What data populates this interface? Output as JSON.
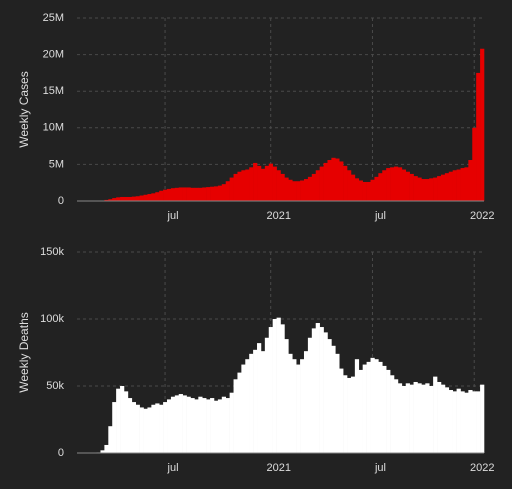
{
  "chart_data": [
    {
      "type": "bar",
      "ylabel": "Weekly Cases",
      "color": "#e60000",
      "categories": [
        null,
        null,
        null,
        null,
        null,
        null,
        null,
        null,
        null,
        null,
        null,
        null,
        null,
        null,
        null,
        null,
        null,
        null,
        null,
        null,
        null,
        null,
        "jul",
        null,
        null,
        null,
        null,
        null,
        null,
        null,
        null,
        null,
        null,
        null,
        null,
        null,
        null,
        null,
        null,
        null,
        null,
        null,
        null,
        null,
        null,
        null,
        null,
        null,
        null,
        "2021",
        null,
        null,
        null,
        null,
        null,
        null,
        null,
        null,
        null,
        null,
        null,
        null,
        null,
        null,
        null,
        null,
        null,
        null,
        null,
        null,
        null,
        null,
        null,
        null,
        null,
        "jul",
        null,
        null,
        null,
        null,
        null,
        null,
        null,
        null,
        null,
        null,
        null,
        null,
        null,
        null,
        null,
        null,
        null,
        null,
        null,
        null,
        null,
        null,
        null,
        null,
        null,
        "2022",
        null,
        null
      ],
      "values": [
        0,
        0,
        0,
        0,
        5000,
        20000,
        60000,
        150000,
        250000,
        400000,
        500000,
        550000,
        550000,
        550000,
        600000,
        650000,
        750000,
        850000,
        950000,
        1050000,
        1200000,
        1400000,
        1550000,
        1650000,
        1750000,
        1800000,
        1850000,
        1850000,
        1850000,
        1800000,
        1800000,
        1800000,
        1850000,
        1900000,
        1950000,
        2000000,
        2100000,
        2300000,
        2700000,
        3200000,
        3700000,
        4000000,
        4200000,
        4300000,
        4600000,
        5200000,
        4800000,
        4400000,
        4800000,
        5100000,
        4700000,
        4200000,
        3700000,
        3200000,
        2900000,
        2700000,
        2700000,
        2800000,
        3000000,
        3300000,
        3700000,
        4200000,
        4700000,
        5200000,
        5600000,
        5900000,
        5800000,
        5400000,
        4800000,
        4200000,
        3600000,
        3100000,
        2800000,
        2600000,
        2600000,
        2900000,
        3300000,
        3800000,
        4200000,
        4500000,
        4600000,
        4700000,
        4600000,
        4300000,
        4000000,
        3700000,
        3400000,
        3200000,
        3000000,
        3000000,
        3100000,
        3200000,
        3400000,
        3600000,
        3800000,
        4000000,
        4200000,
        4300000,
        4500000,
        4600000,
        5600000,
        10000000,
        17500000,
        20800000
      ],
      "ylim": [
        0,
        25000000
      ],
      "yticks": [
        0,
        {
          "value": 5000000,
          "label": "5M"
        },
        {
          "value": 10000000,
          "label": "10M"
        },
        {
          "value": 15000000,
          "label": "15M"
        },
        {
          "value": 20000000,
          "label": "20M"
        },
        {
          "value": 25000000,
          "label": "25M"
        }
      ],
      "grid": true
    },
    {
      "type": "bar",
      "ylabel": "Weekly Deaths",
      "color": "#ffffff",
      "categories": [
        null,
        null,
        null,
        null,
        null,
        null,
        null,
        null,
        null,
        null,
        null,
        null,
        null,
        null,
        null,
        null,
        null,
        null,
        null,
        null,
        null,
        null,
        "jul",
        null,
        null,
        null,
        null,
        null,
        null,
        null,
        null,
        null,
        null,
        null,
        null,
        null,
        null,
        null,
        null,
        null,
        null,
        null,
        null,
        null,
        null,
        null,
        null,
        null,
        null,
        "2021",
        null,
        null,
        null,
        null,
        null,
        null,
        null,
        null,
        null,
        null,
        null,
        null,
        null,
        null,
        null,
        null,
        null,
        null,
        null,
        null,
        null,
        null,
        null,
        null,
        null,
        "jul",
        null,
        null,
        null,
        null,
        null,
        null,
        null,
        null,
        null,
        null,
        null,
        null,
        null,
        null,
        null,
        null,
        null,
        null,
        null,
        null,
        null,
        null,
        null,
        null,
        null,
        "2022",
        null,
        null
      ],
      "values": [
        0,
        0,
        0,
        0,
        50,
        400,
        2000,
        6000,
        20000,
        38000,
        48000,
        50000,
        46000,
        41000,
        38000,
        36000,
        34000,
        33000,
        34000,
        36000,
        37000,
        36000,
        38000,
        40000,
        42000,
        43000,
        44000,
        43000,
        42000,
        41000,
        40000,
        42000,
        41000,
        40000,
        41000,
        39000,
        40000,
        42000,
        41000,
        45000,
        55000,
        60000,
        66000,
        70000,
        74000,
        77000,
        82000,
        76000,
        86000,
        94000,
        100000,
        101000,
        96000,
        85000,
        74000,
        70000,
        66000,
        70000,
        76000,
        86000,
        93000,
        97000,
        94000,
        90000,
        85000,
        80000,
        74000,
        63000,
        58000,
        56000,
        57000,
        70000,
        62000,
        66000,
        68000,
        71000,
        70000,
        68000,
        65000,
        62000,
        58000,
        55000,
        52000,
        50000,
        52000,
        51000,
        53000,
        52000,
        51000,
        52000,
        50000,
        57000,
        53000,
        51000,
        49000,
        47000,
        46000,
        48000,
        46000,
        45000,
        47000,
        46000,
        46000,
        51000
      ],
      "ylim": [
        0,
        150000
      ],
      "yticks": [
        0,
        {
          "value": 50000,
          "label": "50k"
        },
        {
          "value": 100000,
          "label": "100k"
        },
        {
          "value": 150000,
          "label": "150k"
        }
      ],
      "grid": true
    }
  ]
}
